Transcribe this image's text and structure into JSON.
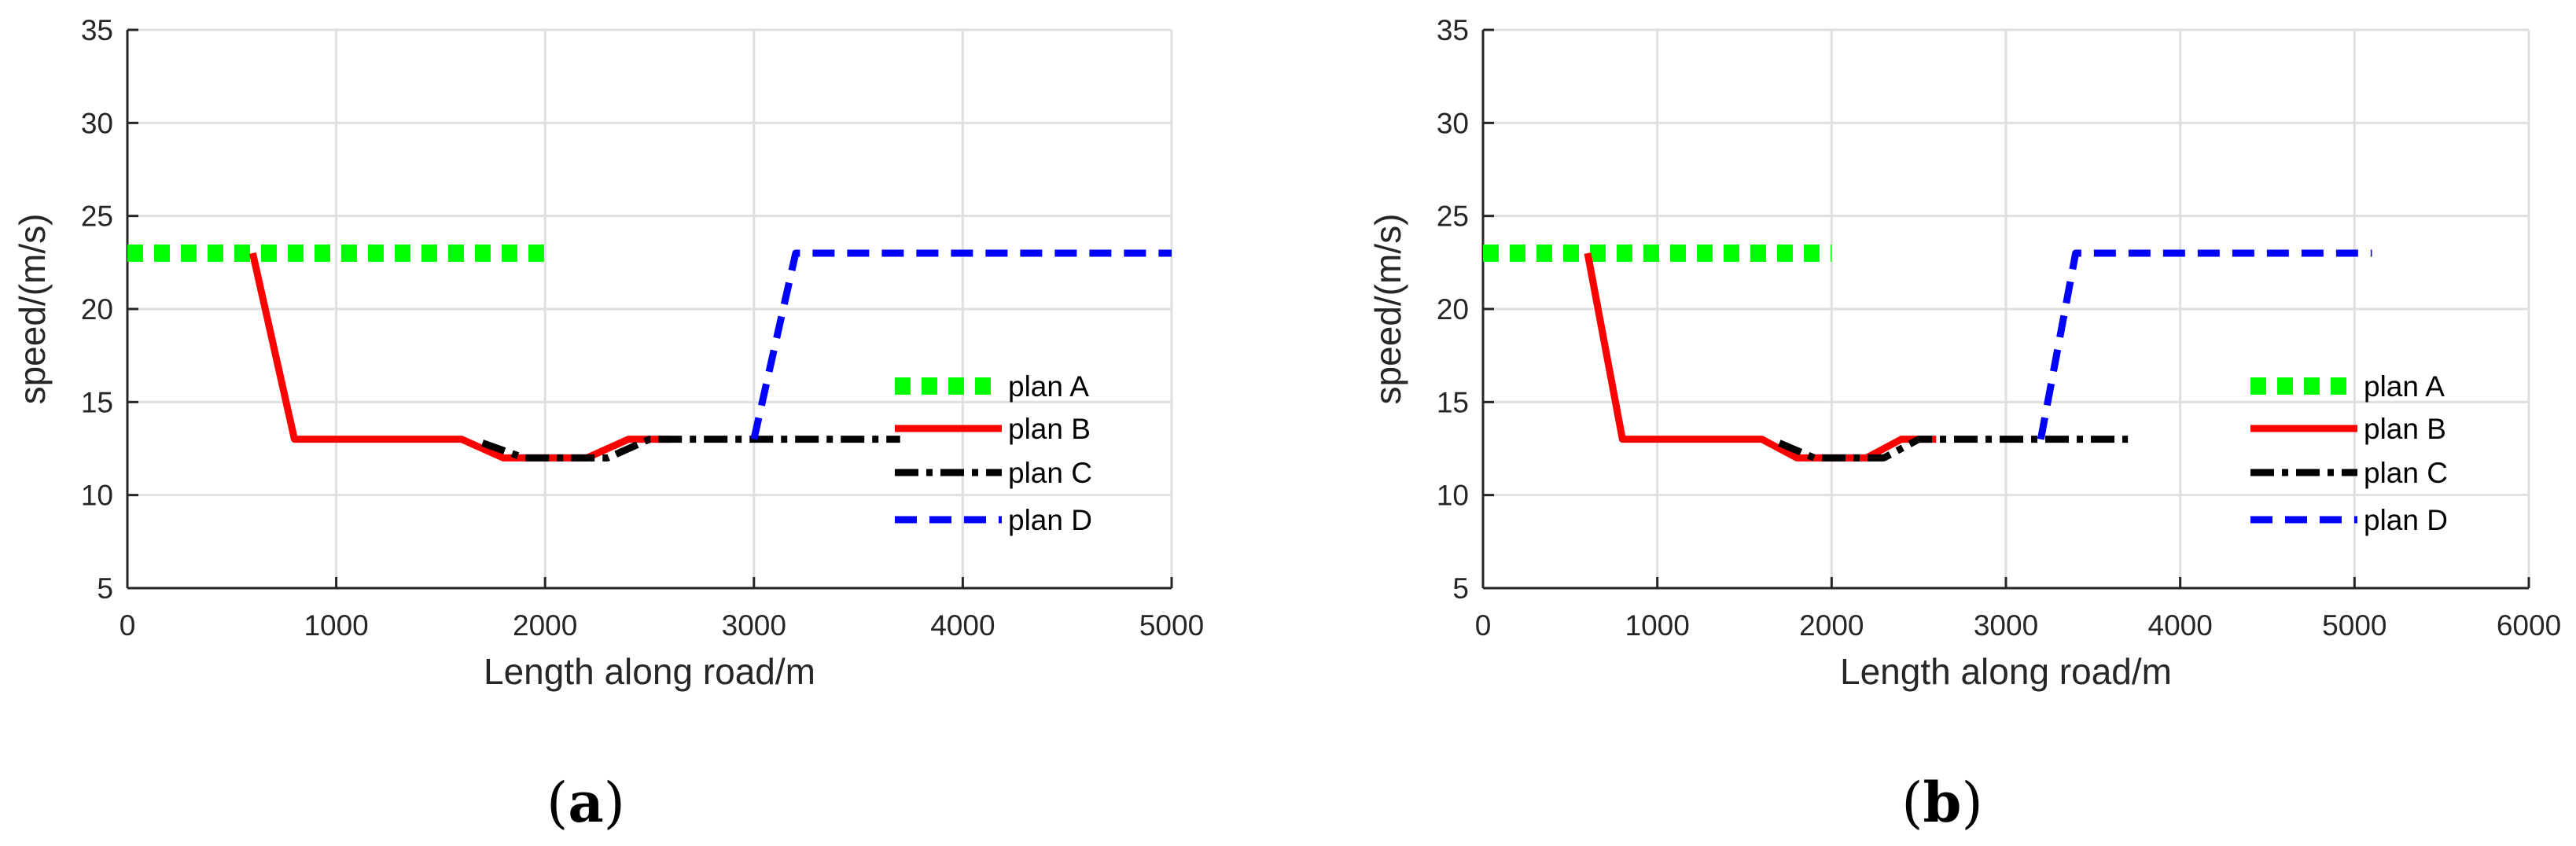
{
  "chart_data": [
    {
      "type": "line",
      "panel_label": {
        "open": "(",
        "letter": "a",
        "close": ")"
      },
      "xlabel": "Length along road/m",
      "ylabel": "speed/(m/s)",
      "xlim": [
        0,
        5000
      ],
      "ylim": [
        5,
        35
      ],
      "xticks": [
        0,
        1000,
        2000,
        3000,
        4000,
        5000
      ],
      "yticks": [
        5,
        10,
        15,
        20,
        25,
        30,
        35
      ],
      "grid": true,
      "legend_position": "right",
      "series": [
        {
          "name": "plan A",
          "color": "#00ff00",
          "style": "dotted",
          "x": [
            0,
            2000
          ],
          "y": [
            23,
            23
          ]
        },
        {
          "name": "plan B",
          "color": "#ff0000",
          "style": "solid",
          "x": [
            600,
            800,
            1600,
            1800,
            2200,
            2400,
            2600
          ],
          "y": [
            23,
            13,
            13,
            12,
            12,
            13,
            13
          ]
        },
        {
          "name": "plan C",
          "color": "#000000",
          "style": "dashdot",
          "x": [
            1700,
            1900,
            2300,
            2500,
            3700
          ],
          "y": [
            12.8,
            12,
            12,
            13,
            13
          ]
        },
        {
          "name": "plan D",
          "color": "#0000ff",
          "style": "dashed",
          "x": [
            3000,
            3200,
            5000
          ],
          "y": [
            13,
            23,
            23
          ]
        }
      ]
    },
    {
      "type": "line",
      "panel_label": {
        "open": "(",
        "letter": "b",
        "close": ")"
      },
      "xlabel": "Length along road/m",
      "ylabel": "speed/(m/s)",
      "xlim": [
        0,
        6000
      ],
      "ylim": [
        5,
        35
      ],
      "xticks": [
        0,
        1000,
        2000,
        3000,
        4000,
        5000,
        6000
      ],
      "yticks": [
        5,
        10,
        15,
        20,
        25,
        30,
        35
      ],
      "grid": true,
      "legend_position": "right",
      "series": [
        {
          "name": "plan A",
          "color": "#00ff00",
          "style": "dotted",
          "x": [
            0,
            2000
          ],
          "y": [
            23,
            23
          ]
        },
        {
          "name": "plan B",
          "color": "#ff0000",
          "style": "solid",
          "x": [
            600,
            800,
            1600,
            1800,
            2200,
            2400,
            2600
          ],
          "y": [
            23,
            13,
            13,
            12,
            12,
            13,
            13
          ]
        },
        {
          "name": "plan C",
          "color": "#000000",
          "style": "dashdot",
          "x": [
            1700,
            1900,
            2300,
            2500,
            3700
          ],
          "y": [
            12.8,
            12,
            12,
            13,
            13
          ]
        },
        {
          "name": "plan D",
          "color": "#0000ff",
          "style": "dashed",
          "x": [
            3200,
            3400,
            5100
          ],
          "y": [
            13,
            23,
            23
          ]
        }
      ]
    }
  ]
}
